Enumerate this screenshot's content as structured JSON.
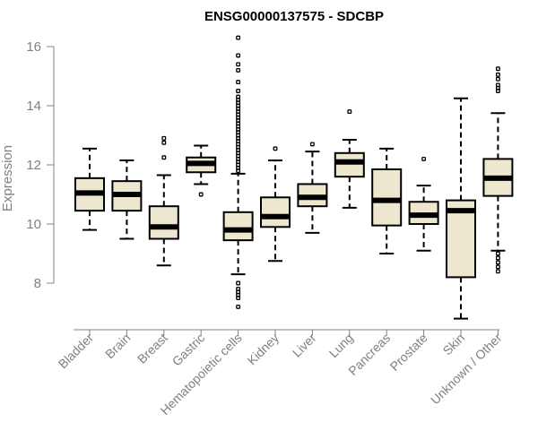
{
  "chart_data": {
    "type": "boxplot",
    "title": "ENSG00000137575 - SDCBP",
    "ylabel": "Expression",
    "xlabel": "",
    "ylim": [
      6.7,
      16.4
    ],
    "yticks": [
      8,
      10,
      12,
      14,
      16
    ],
    "box_color": "#EDE7D0",
    "categories": [
      "Bladder",
      "Brain",
      "Breast",
      "Gastric",
      "Hematopoietic cells",
      "Kidney",
      "Liver",
      "Lung",
      "Pancreas",
      "Prostate",
      "Skin",
      "Unknown / Other"
    ],
    "boxes": [
      {
        "whisker_low": 9.8,
        "q1": 10.45,
        "median": 11.05,
        "q3": 11.55,
        "whisker_high": 12.55,
        "outliers": []
      },
      {
        "whisker_low": 9.5,
        "q1": 10.45,
        "median": 11.0,
        "q3": 11.45,
        "whisker_high": 12.15,
        "outliers": []
      },
      {
        "whisker_low": 8.6,
        "q1": 9.5,
        "median": 9.9,
        "q3": 10.6,
        "whisker_high": 11.65,
        "outliers": [
          12.25,
          12.75,
          12.9
        ]
      },
      {
        "whisker_low": 11.35,
        "q1": 11.75,
        "median": 12.05,
        "q3": 12.25,
        "whisker_high": 12.65,
        "outliers": [
          11.0
        ]
      },
      {
        "whisker_low": 8.3,
        "q1": 9.45,
        "median": 9.8,
        "q3": 10.4,
        "whisker_high": 11.7,
        "outliers": [
          7.2,
          7.5,
          7.6,
          7.7,
          7.8,
          8.0,
          11.8,
          11.9,
          12.0,
          12.1,
          12.2,
          12.3,
          12.4,
          12.5,
          12.6,
          12.7,
          12.8,
          12.9,
          13.0,
          13.1,
          13.2,
          13.3,
          13.4,
          13.5,
          13.6,
          13.7,
          13.8,
          13.9,
          14.0,
          14.1,
          14.2,
          14.3,
          14.5,
          14.8,
          15.2,
          15.4,
          15.7,
          16.3
        ]
      },
      {
        "whisker_low": 8.75,
        "q1": 9.9,
        "median": 10.25,
        "q3": 10.9,
        "whisker_high": 12.15,
        "outliers": [
          12.55
        ]
      },
      {
        "whisker_low": 9.7,
        "q1": 10.6,
        "median": 10.9,
        "q3": 11.35,
        "whisker_high": 12.45,
        "outliers": [
          12.7
        ]
      },
      {
        "whisker_low": 10.55,
        "q1": 11.6,
        "median": 12.1,
        "q3": 12.4,
        "whisker_high": 12.85,
        "outliers": [
          13.8
        ]
      },
      {
        "whisker_low": 9.0,
        "q1": 9.95,
        "median": 10.8,
        "q3": 11.85,
        "whisker_high": 12.55,
        "outliers": []
      },
      {
        "whisker_low": 9.1,
        "q1": 10.0,
        "median": 10.3,
        "q3": 10.75,
        "whisker_high": 11.3,
        "outliers": [
          12.2
        ]
      },
      {
        "whisker_low": 6.8,
        "q1": 8.2,
        "median": 10.45,
        "q3": 10.8,
        "whisker_high": 14.25,
        "outliers": []
      },
      {
        "whisker_low": 9.1,
        "q1": 10.95,
        "median": 11.55,
        "q3": 12.2,
        "whisker_high": 13.75,
        "outliers": [
          8.4,
          8.55,
          8.7,
          8.85,
          9.0,
          14.5,
          14.6,
          14.7,
          14.9,
          15.05,
          15.25
        ]
      }
    ]
  }
}
